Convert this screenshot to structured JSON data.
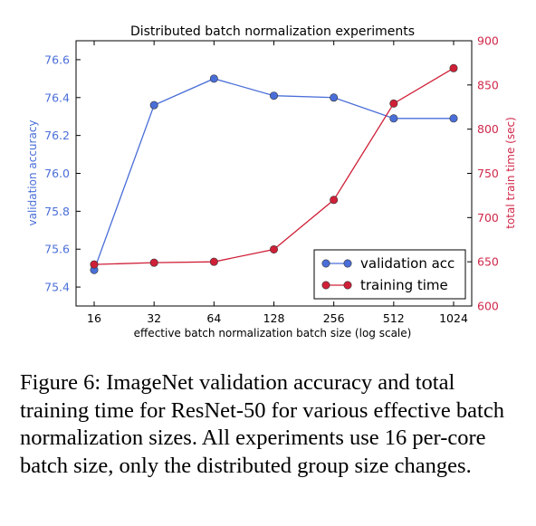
{
  "chart_data": {
    "type": "line",
    "title": "Distributed batch normalization experiments",
    "xlabel": "effective batch normalization batch size (log scale)",
    "x_scale": "log2",
    "categories": [
      "16",
      "32",
      "64",
      "128",
      "256",
      "512",
      "1024"
    ],
    "left_axis": {
      "label": "validation accuracy",
      "ylim": [
        75.3,
        76.7
      ],
      "ticks": [
        "75.4",
        "75.6",
        "75.8",
        "76.0",
        "76.2",
        "76.4",
        "76.6"
      ],
      "color": "#4a6ed8"
    },
    "right_axis": {
      "label": "total train time (sec)",
      "ylim": [
        600,
        900
      ],
      "ticks": [
        "600",
        "650",
        "700",
        "750",
        "800",
        "850",
        "900"
      ],
      "color": "#d0284a"
    },
    "series": [
      {
        "name": "validation acc",
        "axis": "left",
        "color": "#4a6ed8",
        "values": [
          75.49,
          76.36,
          76.5,
          76.41,
          76.4,
          76.29,
          76.29
        ]
      },
      {
        "name": "training time",
        "axis": "right",
        "color": "#cf2038",
        "values": [
          647,
          649,
          650,
          664,
          720,
          829,
          869
        ]
      }
    ],
    "legend": "bottom-right",
    "grid": false
  },
  "caption": "Figure 6: ImageNet validation accuracy and total training time for ResNet-50 for various effective batch normalization sizes. All experiments use 16 per-core batch size, only the distributed group size changes."
}
